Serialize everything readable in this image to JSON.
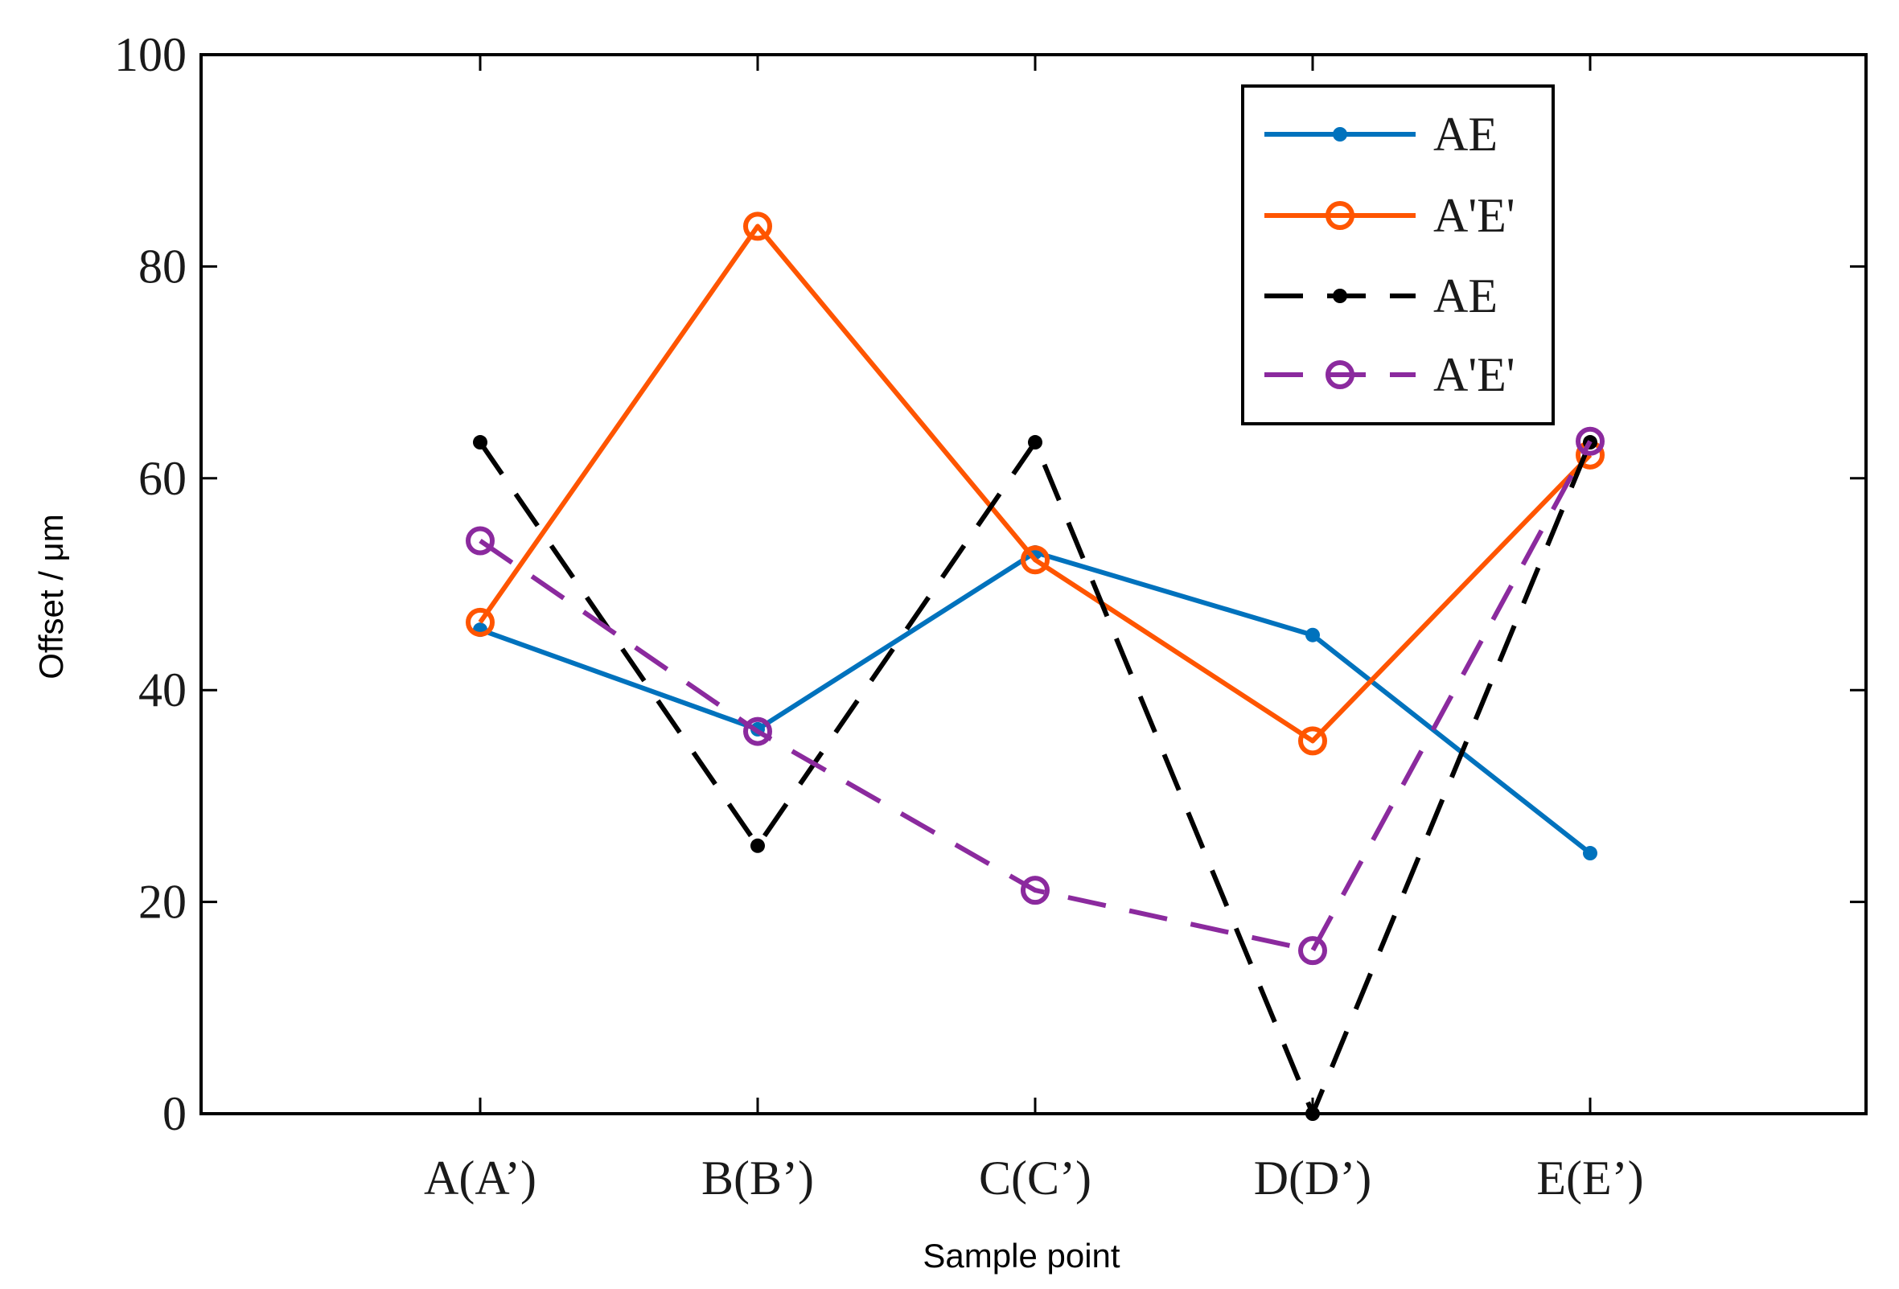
{
  "chart_data": {
    "type": "line",
    "title": "",
    "xlabel": "Sample point",
    "ylabel": "Offset / μm",
    "categories": [
      "A(A’)",
      "B(B’)",
      "C(C’)",
      "D(D’)",
      "E(E’)"
    ],
    "ylim": [
      0,
      100
    ],
    "yticks": [
      "0",
      "20",
      "40",
      "60",
      "80",
      "100"
    ],
    "grid": false,
    "legend_position": "top-right",
    "series": [
      {
        "name": "AE",
        "values": [
          45.7,
          36.3,
          53.0,
          45.2,
          24.6
        ],
        "color": "#0072BD",
        "line": "solid",
        "marker": "dot"
      },
      {
        "name": "A'E'",
        "values": [
          46.4,
          83.8,
          52.3,
          35.2,
          62.2
        ],
        "color": "#FF5500",
        "line": "solid",
        "marker": "open-circle"
      },
      {
        "name": "AE",
        "values": [
          63.4,
          25.3,
          63.4,
          0.0,
          63.4
        ],
        "color": "#000000",
        "line": "dashed",
        "marker": "dot"
      },
      {
        "name": "A'E'",
        "values": [
          54.1,
          36.1,
          21.1,
          15.4,
          63.5
        ],
        "color": "#8B2A9E",
        "line": "dashed",
        "marker": "open-circle"
      }
    ]
  }
}
